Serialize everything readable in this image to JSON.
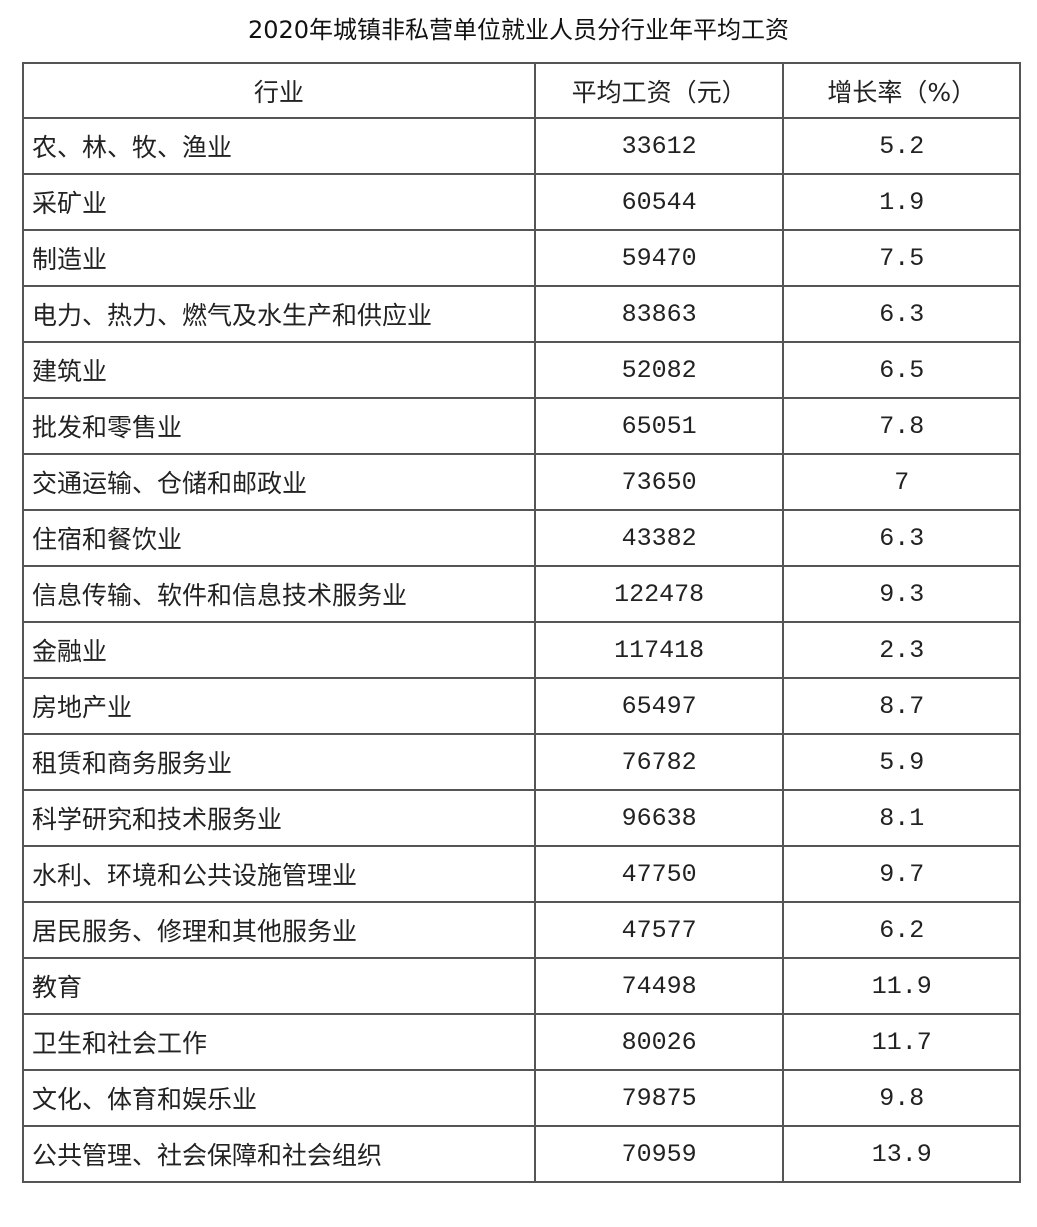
{
  "title": "2020年城镇非私营单位就业人员分行业年平均工资",
  "headers": [
    "行业",
    "平均工资（元）",
    "增长率（%）"
  ],
  "rows": [
    {
      "industry": "农、林、牧、渔业",
      "wage": "33612",
      "growth": "5.2"
    },
    {
      "industry": "采矿业",
      "wage": "60544",
      "growth": "1.9"
    },
    {
      "industry": "制造业",
      "wage": "59470",
      "growth": "7.5"
    },
    {
      "industry": "电力、热力、燃气及水生产和供应业",
      "wage": "83863",
      "growth": "6.3"
    },
    {
      "industry": "建筑业",
      "wage": "52082",
      "growth": "6.5"
    },
    {
      "industry": "批发和零售业",
      "wage": "65051",
      "growth": "7.8"
    },
    {
      "industry": "交通运输、仓储和邮政业",
      "wage": "73650",
      "growth": "7"
    },
    {
      "industry": "住宿和餐饮业",
      "wage": "43382",
      "growth": "6.3"
    },
    {
      "industry": "信息传输、软件和信息技术服务业",
      "wage": "122478",
      "growth": "9.3"
    },
    {
      "industry": "金融业",
      "wage": "117418",
      "growth": "2.3"
    },
    {
      "industry": "房地产业",
      "wage": "65497",
      "growth": "8.7"
    },
    {
      "industry": "租赁和商务服务业",
      "wage": "76782",
      "growth": "5.9"
    },
    {
      "industry": "科学研究和技术服务业",
      "wage": "96638",
      "growth": "8.1"
    },
    {
      "industry": "水利、环境和公共设施管理业",
      "wage": "47750",
      "growth": "9.7"
    },
    {
      "industry": "居民服务、修理和其他服务业",
      "wage": "47577",
      "growth": "6.2"
    },
    {
      "industry": "教育",
      "wage": "74498",
      "growth": "11.9"
    },
    {
      "industry": "卫生和社会工作",
      "wage": "80026",
      "growth": "11.7"
    },
    {
      "industry": "文化、体育和娱乐业",
      "wage": "79875",
      "growth": "9.8"
    },
    {
      "industry": "公共管理、社会保障和社会组织",
      "wage": "70959",
      "growth": "13.9"
    }
  ]
}
